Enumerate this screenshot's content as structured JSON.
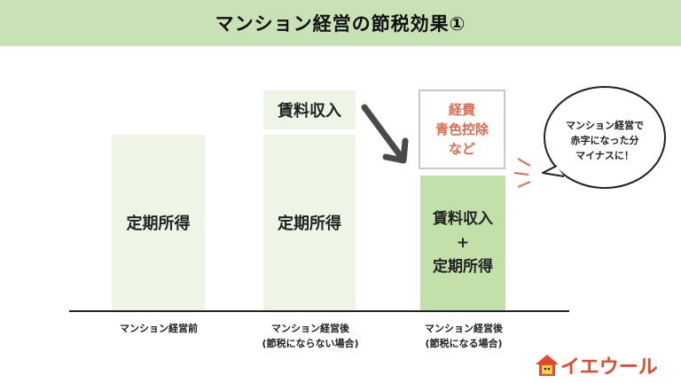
{
  "title": "マンション経営の節税効果①",
  "col1": {
    "block": "定期所得",
    "label": "マンション経営前"
  },
  "col2": {
    "top_block": "賃料収入",
    "block": "定期所得",
    "label_line1": "マンション経営後",
    "label_line2": "(節税にならない場合)"
  },
  "col3": {
    "outline_line1": "経費",
    "outline_line2": "青色控除",
    "outline_line3": "など",
    "green_line1": "賃料収入",
    "green_line2": "+",
    "green_line3": "定期所得",
    "label_line1": "マンション経営後",
    "label_line2": "(節税になる場合)"
  },
  "bubble": {
    "line1": "マンション経営で",
    "line2": "赤字になった分",
    "line3": "マイナスに！"
  },
  "logo": {
    "text": "イエウール"
  },
  "colors": {
    "title_bg": "#c9e2b5",
    "pale_block": "#eef5e6",
    "green_block": "#c3dfaa",
    "accent_red": "#e06a4f",
    "logo": "#e3492b"
  }
}
